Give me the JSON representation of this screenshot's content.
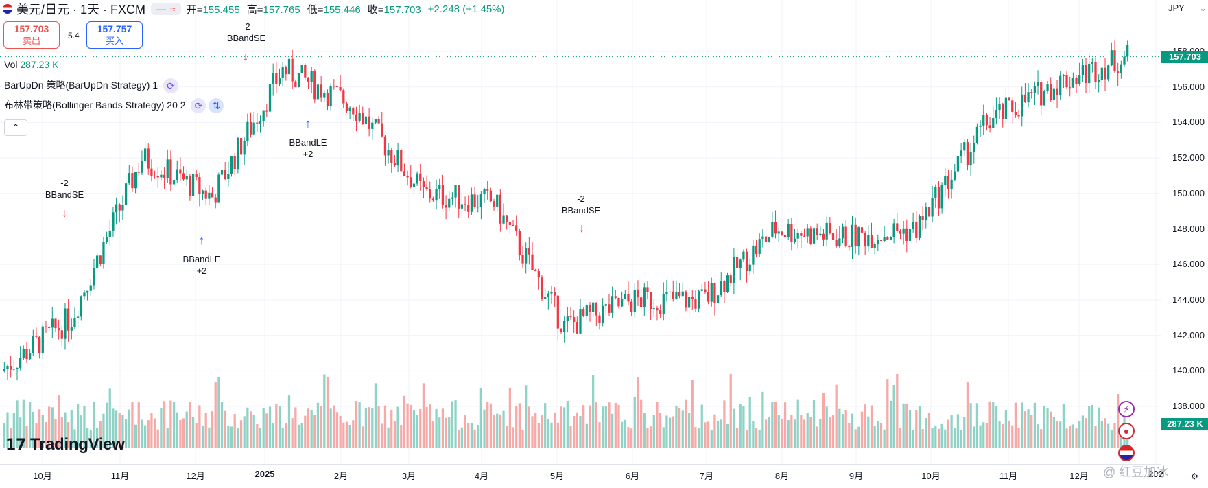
{
  "header": {
    "symbol": "美元/日元 · 1天 · FXCM",
    "open_label": "开",
    "open": "155.455",
    "high_label": "高",
    "high": "157.765",
    "low_label": "低",
    "low": "155.446",
    "close_label": "收",
    "close": "157.703",
    "change": "+2.248 (+1.45%)"
  },
  "trade": {
    "sell_price": "157.703",
    "sell_label": "卖出",
    "buy_price": "157.757",
    "buy_label": "买入",
    "spread": "5.4"
  },
  "legends": {
    "vol_label": "Vol",
    "vol_value": "287.23 K",
    "strategy1": "BarUpDn 策略(BarUpDn Strategy) 1",
    "strategy2": "布林带策略(Bollinger Bands Strategy) 20 2"
  },
  "currency": "JPY",
  "price_axis": [
    "158.000",
    "156.000",
    "154.000",
    "152.000",
    "150.000",
    "148.000",
    "146.000",
    "144.000",
    "142.000",
    "140.000",
    "138.000"
  ],
  "last_price": "157.703",
  "last_volume": "287.23 K",
  "time_axis": [
    {
      "label": "10月",
      "bold": false
    },
    {
      "label": "11月",
      "bold": false
    },
    {
      "label": "12月",
      "bold": false
    },
    {
      "label": "2025",
      "bold": true
    },
    {
      "label": "2月",
      "bold": false
    },
    {
      "label": "3月",
      "bold": false
    },
    {
      "label": "4月",
      "bold": false
    },
    {
      "label": "5月",
      "bold": false
    },
    {
      "label": "6月",
      "bold": false
    },
    {
      "label": "7月",
      "bold": false
    },
    {
      "label": "8月",
      "bold": false
    },
    {
      "label": "9月",
      "bold": false
    },
    {
      "label": "10月",
      "bold": false
    },
    {
      "label": "11月",
      "bold": false
    },
    {
      "label": "12月",
      "bold": false
    },
    {
      "label": "202",
      "bold": true
    }
  ],
  "annotations": [
    {
      "type": "short",
      "qty": "-2",
      "label": "BBandSE"
    },
    {
      "type": "long",
      "qty": "+2",
      "label": "BBandLE"
    },
    {
      "type": "short",
      "qty": "-2",
      "label": "BBandSE"
    },
    {
      "type": "long",
      "qty": "+2",
      "label": "BBandLE"
    },
    {
      "type": "short",
      "qty": "-2",
      "label": "BBandSE"
    }
  ],
  "logo": "TradingView",
  "watermark": "@ 红豆加冰",
  "colors": {
    "up": "#089981",
    "down": "#f23645",
    "vol_up": "#8fd3c6",
    "vol_down": "#f7a9a7",
    "accent": "#2962ff"
  },
  "chart_data": {
    "type": "candlestick",
    "symbol": "USDJPY",
    "interval": "1D",
    "ylim": [
      137.5,
      158.8
    ],
    "monthly_close_path": [
      {
        "month": "2024-09",
        "start": 140.0,
        "end": 143.0
      },
      {
        "month": "2024-10",
        "start": 143.0,
        "end": 152.0
      },
      {
        "month": "2024-11",
        "start": 152.0,
        "end": 149.8
      },
      {
        "month": "2024-12",
        "start": 149.8,
        "end": 157.0
      },
      {
        "month": "2025-01",
        "start": 157.0,
        "end": 155.0
      },
      {
        "month": "2025-02",
        "start": 155.0,
        "end": 150.0
      },
      {
        "month": "2025-03",
        "start": 150.0,
        "end": 149.5
      },
      {
        "month": "2025-04",
        "start": 149.5,
        "end": 142.5
      },
      {
        "month": "2025-05",
        "start": 142.5,
        "end": 144.0
      },
      {
        "month": "2025-06",
        "start": 144.0,
        "end": 144.0
      },
      {
        "month": "2025-07",
        "start": 144.0,
        "end": 148.0
      },
      {
        "month": "2025-08",
        "start": 148.0,
        "end": 147.5
      },
      {
        "month": "2025-09",
        "start": 147.5,
        "end": 148.0
      },
      {
        "month": "2025-10",
        "start": 148.0,
        "end": 154.0
      },
      {
        "month": "2025-11",
        "start": 154.0,
        "end": 156.2
      },
      {
        "month": "2025-12",
        "start": 156.2,
        "end": 157.7
      }
    ]
  }
}
